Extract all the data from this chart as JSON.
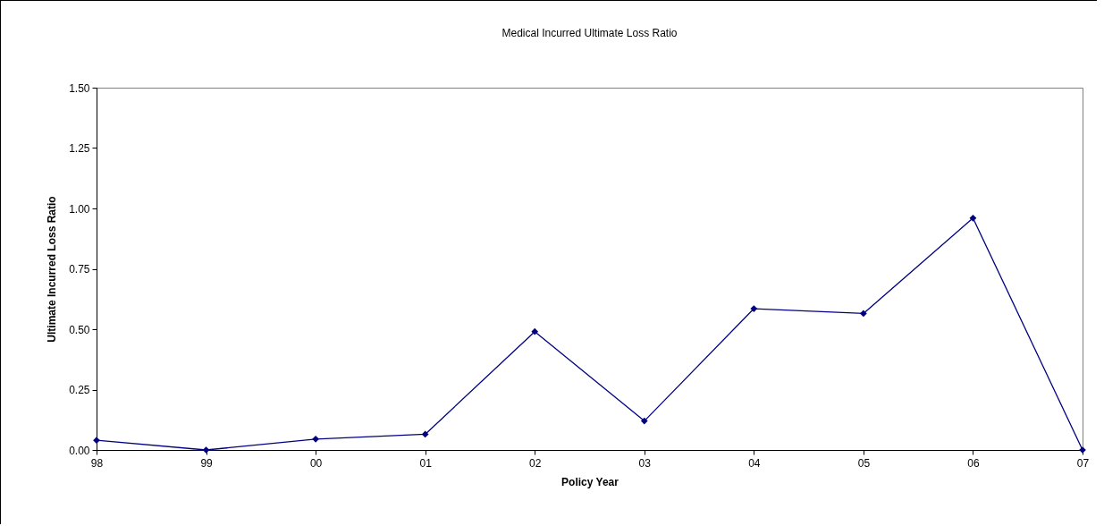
{
  "chart_data": {
    "type": "line",
    "title": "Medical Incurred Ultimate Loss Ratio",
    "xlabel": "Policy Year",
    "ylabel": "Ultimate Incurred Loss Ratio",
    "categories": [
      "98",
      "99",
      "00",
      "01",
      "02",
      "03",
      "04",
      "05",
      "06",
      "07"
    ],
    "series": [
      {
        "color": "#000080",
        "values": [
          0.04,
          0.0,
          0.045,
          0.065,
          0.49,
          0.12,
          0.585,
          0.565,
          0.96,
          0.0
        ]
      }
    ],
    "ylim": [
      0,
      1.5
    ],
    "yticks": [
      {
        "value": 0,
        "label": "0.00"
      },
      {
        "value": 0.25,
        "label": "0.25"
      },
      {
        "value": 0.5,
        "label": "0.50"
      },
      {
        "value": 0.75,
        "label": "0.75"
      },
      {
        "value": 1,
        "label": "1.00"
      },
      {
        "value": 1.25,
        "label": "1.25"
      },
      {
        "value": 1.5,
        "label": "1.50"
      }
    ],
    "grid": false,
    "legend": false,
    "marker": "diamond",
    "line_style": "solid"
  }
}
